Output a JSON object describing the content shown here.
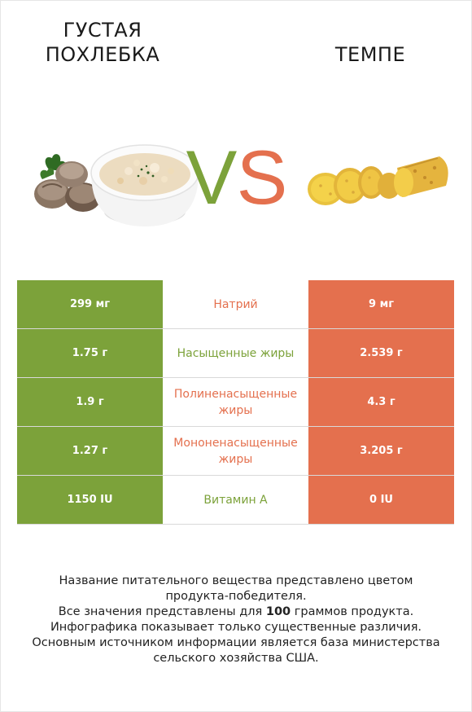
{
  "left_food": {
    "title": "ГУСТАЯ\nПОХЛЕБКА",
    "image_icon": "clam-chowder-bowl-icon"
  },
  "right_food": {
    "title": "ТЕМПЕ",
    "image_icon": "tempeh-slices-icon"
  },
  "vs": {
    "v": "V",
    "s": "S"
  },
  "colors": {
    "left": "#7ca23a",
    "right": "#e4704e",
    "neutral": "#ffffff"
  },
  "rows": [
    {
      "left": "299 мг",
      "label": "Натрий",
      "right": "9 мг",
      "winner": "right"
    },
    {
      "left": "1.75 г",
      "label": "Насыщенные жиры",
      "right": "2.539 г",
      "winner": "left"
    },
    {
      "left": "1.9 г",
      "label": "Полиненасыщенные жиры",
      "right": "4.3 г",
      "winner": "right"
    },
    {
      "left": "1.27 г",
      "label": "Мононенасыщенные жиры",
      "right": "3.205 г",
      "winner": "right"
    },
    {
      "left": "1150 IU",
      "label": "Витамин A",
      "right": "0 IU",
      "winner": "left"
    }
  ],
  "footer": {
    "line1": "Название питательного вещества представлено цветом",
    "line2": "продукта-победителя.",
    "line3_pre": "Все значения представлены для ",
    "line3_bold": "100",
    "line3_post": " граммов продукта.",
    "line4": "Инфографика показывает только существенные различия.",
    "line5": "Основным источником информации является база министерства",
    "line6": "сельского хозяйства США."
  }
}
